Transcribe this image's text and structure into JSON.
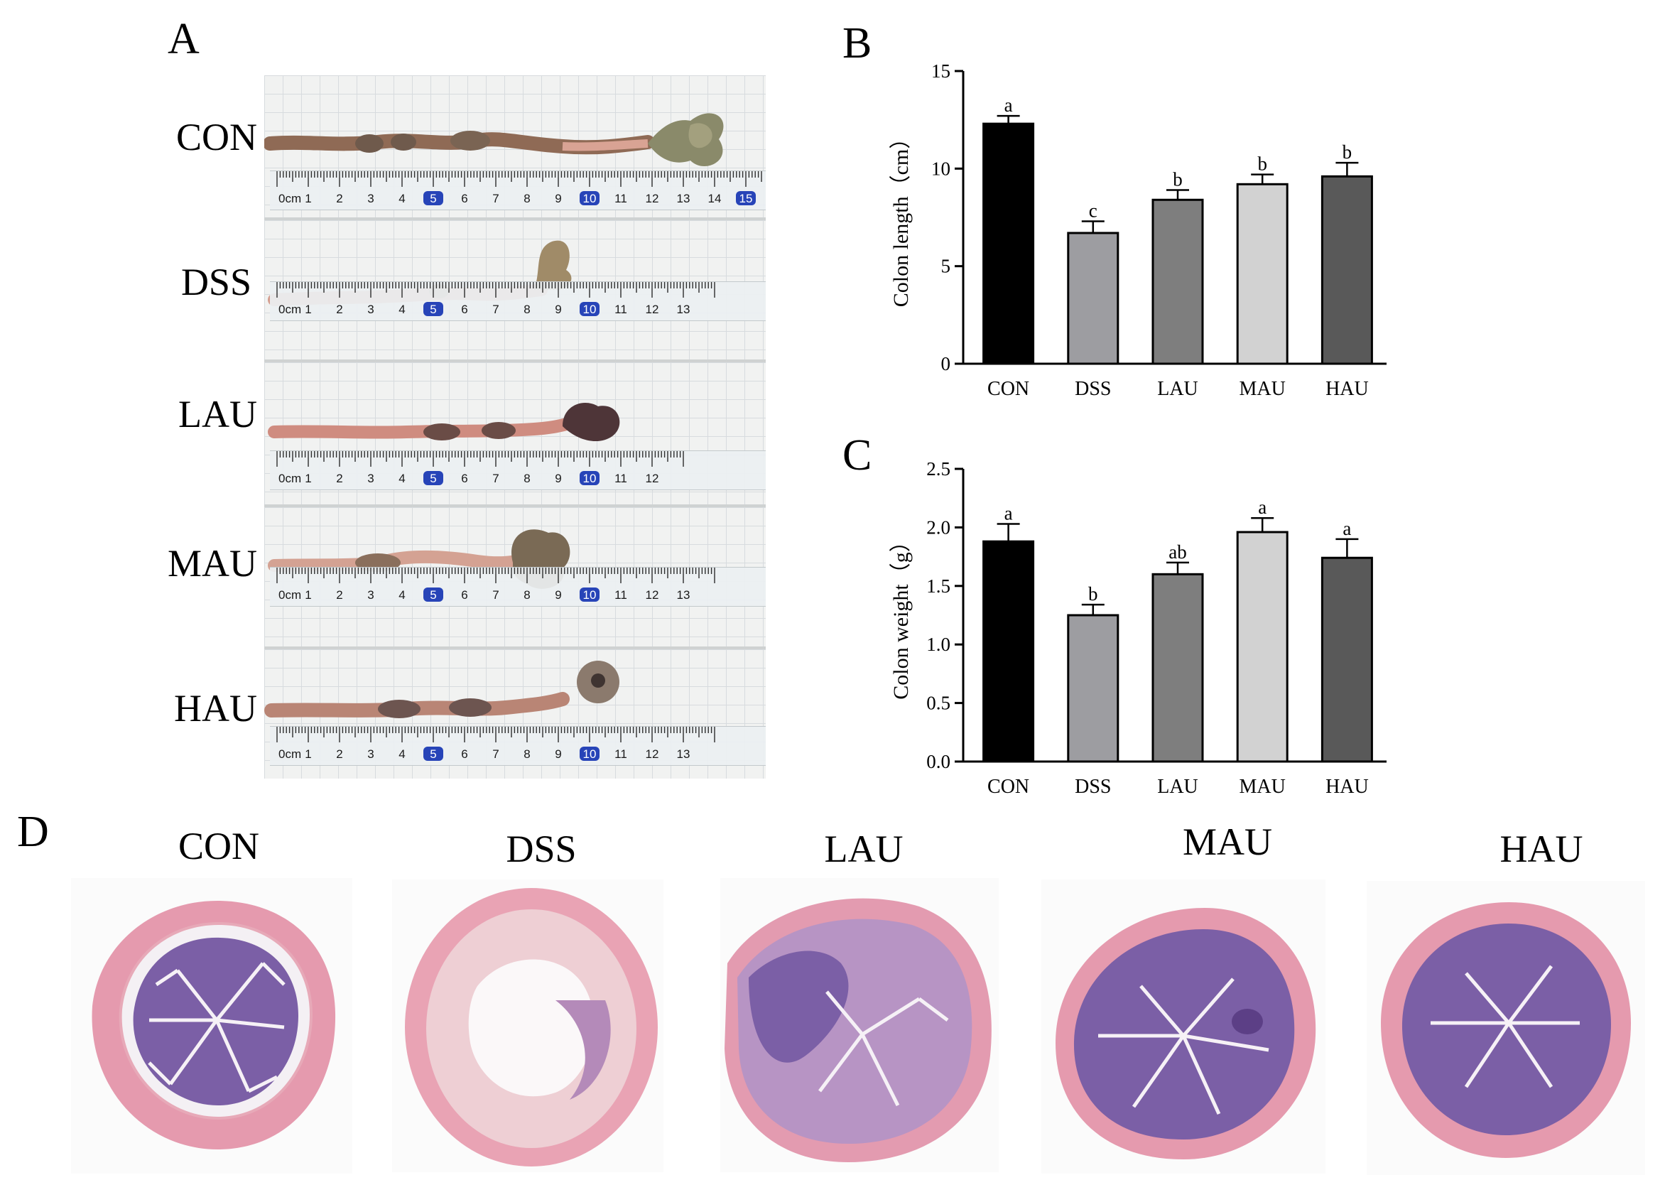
{
  "panel_letters": {
    "a": "A",
    "b": "B",
    "c": "C",
    "d": "D"
  },
  "panel_a": {
    "groups": [
      "CON",
      "DSS",
      "LAU",
      "MAU",
      "HAU"
    ],
    "ruler_unit": "0cm",
    "ruler_numbers": [
      [
        "1",
        "2",
        "3",
        "4",
        "5",
        "6",
        "7",
        "8",
        "9",
        "10",
        "11",
        "12",
        "13",
        "14",
        "15"
      ],
      [
        "1",
        "2",
        "3",
        "4",
        "5",
        "6",
        "7",
        "8",
        "9",
        "10",
        "11",
        "12",
        "13"
      ],
      [
        "1",
        "2",
        "3",
        "4",
        "5",
        "6",
        "7",
        "8",
        "9",
        "10",
        "11",
        "12"
      ],
      [
        "1",
        "2",
        "3",
        "4",
        "5",
        "6",
        "7",
        "8",
        "9",
        "10",
        "11",
        "12",
        "13"
      ],
      [
        "1",
        "2",
        "3",
        "4",
        "5",
        "6",
        "7",
        "8",
        "9",
        "10",
        "11",
        "12",
        "13"
      ]
    ]
  },
  "colors": {
    "CON": "#000000",
    "DSS": "#9d9da1",
    "LAU": "#7e7e7e",
    "MAU": "#d2d2d2",
    "HAU": "#595959",
    "tissue_pink": "#e59aae",
    "tissue_purple": "#7b5fa6"
  },
  "chart_data": [
    {
      "type": "bar",
      "panel": "B",
      "categories": [
        "CON",
        "DSS",
        "LAU",
        "MAU",
        "HAU"
      ],
      "values": [
        12.3,
        6.7,
        8.4,
        9.2,
        9.6
      ],
      "errors": [
        0.4,
        0.6,
        0.5,
        0.5,
        0.7
      ],
      "significance": [
        "a",
        "c",
        "b",
        "b",
        "b"
      ],
      "ylabel": "Colon length（cm）",
      "xlabel": "",
      "ylim": [
        0,
        15
      ],
      "yticks": [
        "0",
        "5",
        "10",
        "15"
      ]
    },
    {
      "type": "bar",
      "panel": "C",
      "categories": [
        "CON",
        "DSS",
        "LAU",
        "MAU",
        "HAU"
      ],
      "values": [
        1.88,
        1.25,
        1.6,
        1.96,
        1.74
      ],
      "errors": [
        0.15,
        0.09,
        0.1,
        0.12,
        0.16
      ],
      "significance": [
        "a",
        "b",
        "ab",
        "a",
        "a"
      ],
      "ylabel": "Colon weight（g）",
      "xlabel": "",
      "ylim": [
        0,
        2.5
      ],
      "yticks": [
        "0.0",
        "0.5",
        "1.0",
        "1.5",
        "2.0",
        "2.5"
      ]
    }
  ],
  "panel_d": {
    "groups": [
      "CON",
      "DSS",
      "LAU",
      "MAU",
      "HAU"
    ]
  }
}
